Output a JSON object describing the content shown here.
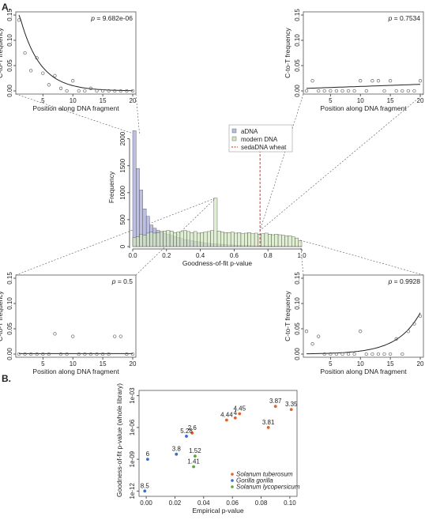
{
  "panel_labels": {
    "a": "A.",
    "b": "B."
  },
  "chart_data": [
    {
      "id": "inset_top_left",
      "type": "scatter",
      "p_label": "p",
      "p_value": "= 9.682e-06",
      "xlabel": "Position along DNA fragment",
      "ylabel": "C-to-T frequency",
      "xlim": [
        1,
        20
      ],
      "ylim": [
        0,
        0.15
      ],
      "xticks": [
        5,
        10,
        15,
        20
      ],
      "yticks": [
        0.0,
        0.05,
        0.1,
        0.15
      ],
      "ytick_labels": [
        "0.00",
        "0.05",
        "0.10",
        "0.15"
      ],
      "x": [
        1,
        2,
        3,
        4,
        5,
        6,
        7,
        8,
        9,
        10,
        11,
        12,
        13,
        14,
        15,
        16,
        17,
        18,
        19,
        20
      ],
      "y": [
        0.14,
        0.075,
        0.04,
        0.065,
        0.035,
        0.012,
        0.03,
        0.005,
        0.0,
        0.02,
        0.0,
        0.0,
        0.005,
        0.0,
        0.0,
        0.0,
        0.0,
        0.0,
        0.0,
        0.0
      ],
      "fit": "exp_decay",
      "fit_params": {
        "a": 0.19,
        "k": 0.3
      }
    },
    {
      "id": "inset_top_right",
      "type": "scatter",
      "p_label": "p",
      "p_value": "= 0.7534",
      "xlabel": "Position along DNA fragment",
      "ylabel": "C-to-T frequency",
      "xlim": [
        1,
        20
      ],
      "ylim": [
        0,
        0.15
      ],
      "xticks": [
        5,
        10,
        15,
        20
      ],
      "yticks": [
        0.0,
        0.05,
        0.1,
        0.15
      ],
      "ytick_labels": [
        "0.00",
        "0.05",
        "0.10",
        "0.15"
      ],
      "x": [
        1,
        2,
        3,
        4,
        5,
        6,
        7,
        8,
        9,
        10,
        11,
        12,
        13,
        14,
        15,
        16,
        17,
        18,
        19,
        20
      ],
      "y": [
        0.0,
        0.02,
        0.0,
        0.0,
        0.0,
        0.0,
        0.0,
        0.0,
        0.0,
        0.02,
        0.0,
        0.02,
        0.02,
        0.0,
        0.02,
        0.0,
        0.0,
        0.0,
        0.0,
        0.02
      ],
      "fit": "linear",
      "fit_params": {
        "y0": 0.005,
        "y1": 0.013
      }
    },
    {
      "id": "histogram",
      "type": "bar",
      "xlabel": "Goodness-of-fit p-value",
      "ylabel": "Frequency",
      "xlim": [
        0,
        1
      ],
      "ylim": [
        0,
        2200
      ],
      "xticks": [
        0.0,
        0.2,
        0.4,
        0.6,
        0.8,
        1.0
      ],
      "xtick_labels": [
        "0.0",
        "0.2",
        "0.4",
        "0.6",
        "0.8",
        "1.0"
      ],
      "yticks": [
        0,
        500,
        1000,
        1500,
        2000
      ],
      "ytick_labels": [
        "0",
        "500",
        "1000",
        "1500",
        "2000"
      ],
      "bin_width": 0.02,
      "legend": {
        "position": "top-right",
        "entries": [
          "aDNA",
          "modern DNA",
          "sedaDNA wheat"
        ]
      },
      "series": [
        {
          "name": "aDNA",
          "color": "#b9bde0",
          "values": [
            2150,
            1450,
            1050,
            700,
            560,
            400,
            340,
            300,
            270,
            250,
            230,
            210,
            190,
            170,
            150,
            130,
            120,
            110,
            100,
            90,
            80,
            70,
            60,
            55,
            50,
            45,
            40,
            35,
            30,
            30,
            25,
            25,
            20,
            20,
            18,
            15,
            15,
            12,
            12,
            10,
            10,
            8,
            8,
            6,
            6,
            5,
            5,
            4,
            4,
            3
          ]
        },
        {
          "name": "modern DNA",
          "color": "#d3e8bf",
          "values": [
            170,
            180,
            230,
            210,
            250,
            270,
            250,
            260,
            280,
            290,
            300,
            290,
            260,
            270,
            280,
            300,
            280,
            260,
            280,
            250,
            260,
            270,
            280,
            300,
            900,
            290,
            270,
            260,
            260,
            270,
            250,
            260,
            240,
            250,
            260,
            240,
            250,
            230,
            240,
            250,
            230,
            220,
            230,
            220,
            210,
            200,
            200,
            180,
            160,
            110
          ]
        }
      ],
      "reference_line": {
        "name": "sedaDNA wheat",
        "x": 0.753,
        "color": "#d42020"
      }
    },
    {
      "id": "inset_bottom_left",
      "type": "scatter",
      "p_label": "p",
      "p_value": "= 0.5",
      "xlabel": "Position along DNA fragment",
      "ylabel": "C-to-T frequency",
      "xlim": [
        1,
        20
      ],
      "ylim": [
        0,
        0.15
      ],
      "xticks": [
        5,
        10,
        15,
        20
      ],
      "yticks": [
        0.0,
        0.05,
        0.1,
        0.15
      ],
      "ytick_labels": [
        "0.00",
        "0.05",
        "0.10",
        "0.15"
      ],
      "x": [
        1,
        2,
        3,
        4,
        5,
        6,
        7,
        8,
        9,
        10,
        11,
        12,
        13,
        14,
        15,
        16,
        17,
        18,
        19,
        20
      ],
      "y": [
        0,
        0,
        0,
        0,
        0,
        0,
        0.04,
        0,
        0,
        0.035,
        0,
        0,
        0,
        0,
        0,
        0,
        0.035,
        0.035,
        0,
        0
      ],
      "fit": "flat",
      "fit_params": {
        "y0": 0.001
      }
    },
    {
      "id": "inset_bottom_right",
      "type": "scatter",
      "p_label": "p",
      "p_value": "= 0.9928",
      "xlabel": "Position along DNA fragment",
      "ylabel": "C-to-T frequency",
      "xlim": [
        1,
        20
      ],
      "ylim": [
        0,
        0.15
      ],
      "xticks": [
        5,
        10,
        15,
        20
      ],
      "yticks": [
        0.0,
        0.05,
        0.1,
        0.15
      ],
      "ytick_labels": [
        "0.00",
        "0.05",
        "0.10",
        "0.15"
      ],
      "x": [
        1,
        2,
        3,
        4,
        5,
        6,
        7,
        8,
        9,
        10,
        11,
        12,
        13,
        14,
        15,
        16,
        17,
        18,
        19,
        20
      ],
      "y": [
        0.045,
        0.02,
        0.035,
        0.0,
        0.0,
        0.0,
        0.0,
        0.0,
        0.0,
        0.045,
        0.0,
        0.0,
        0.0,
        0.0,
        0.0,
        0.03,
        0.0,
        0.045,
        0.06,
        0.075
      ],
      "fit": "exp_growth",
      "fit_params": {
        "a": 0.00045,
        "k": 0.26
      }
    },
    {
      "id": "panel_b",
      "type": "scatter",
      "xlabel": "Empirical p-value",
      "ylabel": "Goodness-of-fit p-value (whole library)",
      "xlim": [
        -0.005,
        0.105
      ],
      "ylim_log10": [
        -12.5,
        -2.5
      ],
      "xticks": [
        0.0,
        0.02,
        0.04,
        0.06,
        0.08,
        0.1
      ],
      "xtick_labels": [
        "0.00",
        "0.02",
        "0.04",
        "0.06",
        "0.08",
        "0.10"
      ],
      "yticks_log10": [
        -12,
        -9,
        -6,
        -3
      ],
      "ytick_labels": [
        "1e-12",
        "1e-09",
        "1e-06",
        "1e-03"
      ],
      "legend": {
        "position": "bottom-right",
        "entries": [
          "Solanum tuberosum",
          "Gorilla gorilla",
          "Solanum lycopersicum"
        ]
      },
      "series": [
        {
          "name": "Solanum tuberosum",
          "color": "#e0632a",
          "points": [
            {
              "x": 0.09,
              "y": 0.0001,
              "label": "3.87"
            },
            {
              "x": 0.101,
              "y": 5e-05,
              "label": "3.35"
            },
            {
              "x": 0.065,
              "y": 2e-05,
              "label": "4.45"
            },
            {
              "x": 0.062,
              "y": 8e-06,
              "label": "4"
            },
            {
              "x": 0.056,
              "y": 5e-06,
              "label": "4.44"
            },
            {
              "x": 0.085,
              "y": 1e-06,
              "label": "3.81"
            },
            {
              "x": 0.032,
              "y": 3e-07,
              "label": "2.6"
            }
          ]
        },
        {
          "name": "Gorilla gorilla",
          "color": "#3b6cc7",
          "points": [
            {
              "x": 0.028,
              "y": 1.5e-07,
              "label": "5.28"
            },
            {
              "x": 0.021,
              "y": 3e-09,
              "label": "3.8"
            },
            {
              "x": 0.001,
              "y": 1e-09,
              "label": "6"
            },
            {
              "x": -0.001,
              "y": 1e-12,
              "label": "8.5"
            }
          ]
        },
        {
          "name": "Solanum lycopersicum",
          "color": "#5aa838",
          "points": [
            {
              "x": 0.034,
              "y": 2e-09,
              "label": "1.52"
            },
            {
              "x": 0.033,
              "y": 2e-10,
              "label": "1.41"
            }
          ]
        }
      ]
    }
  ]
}
